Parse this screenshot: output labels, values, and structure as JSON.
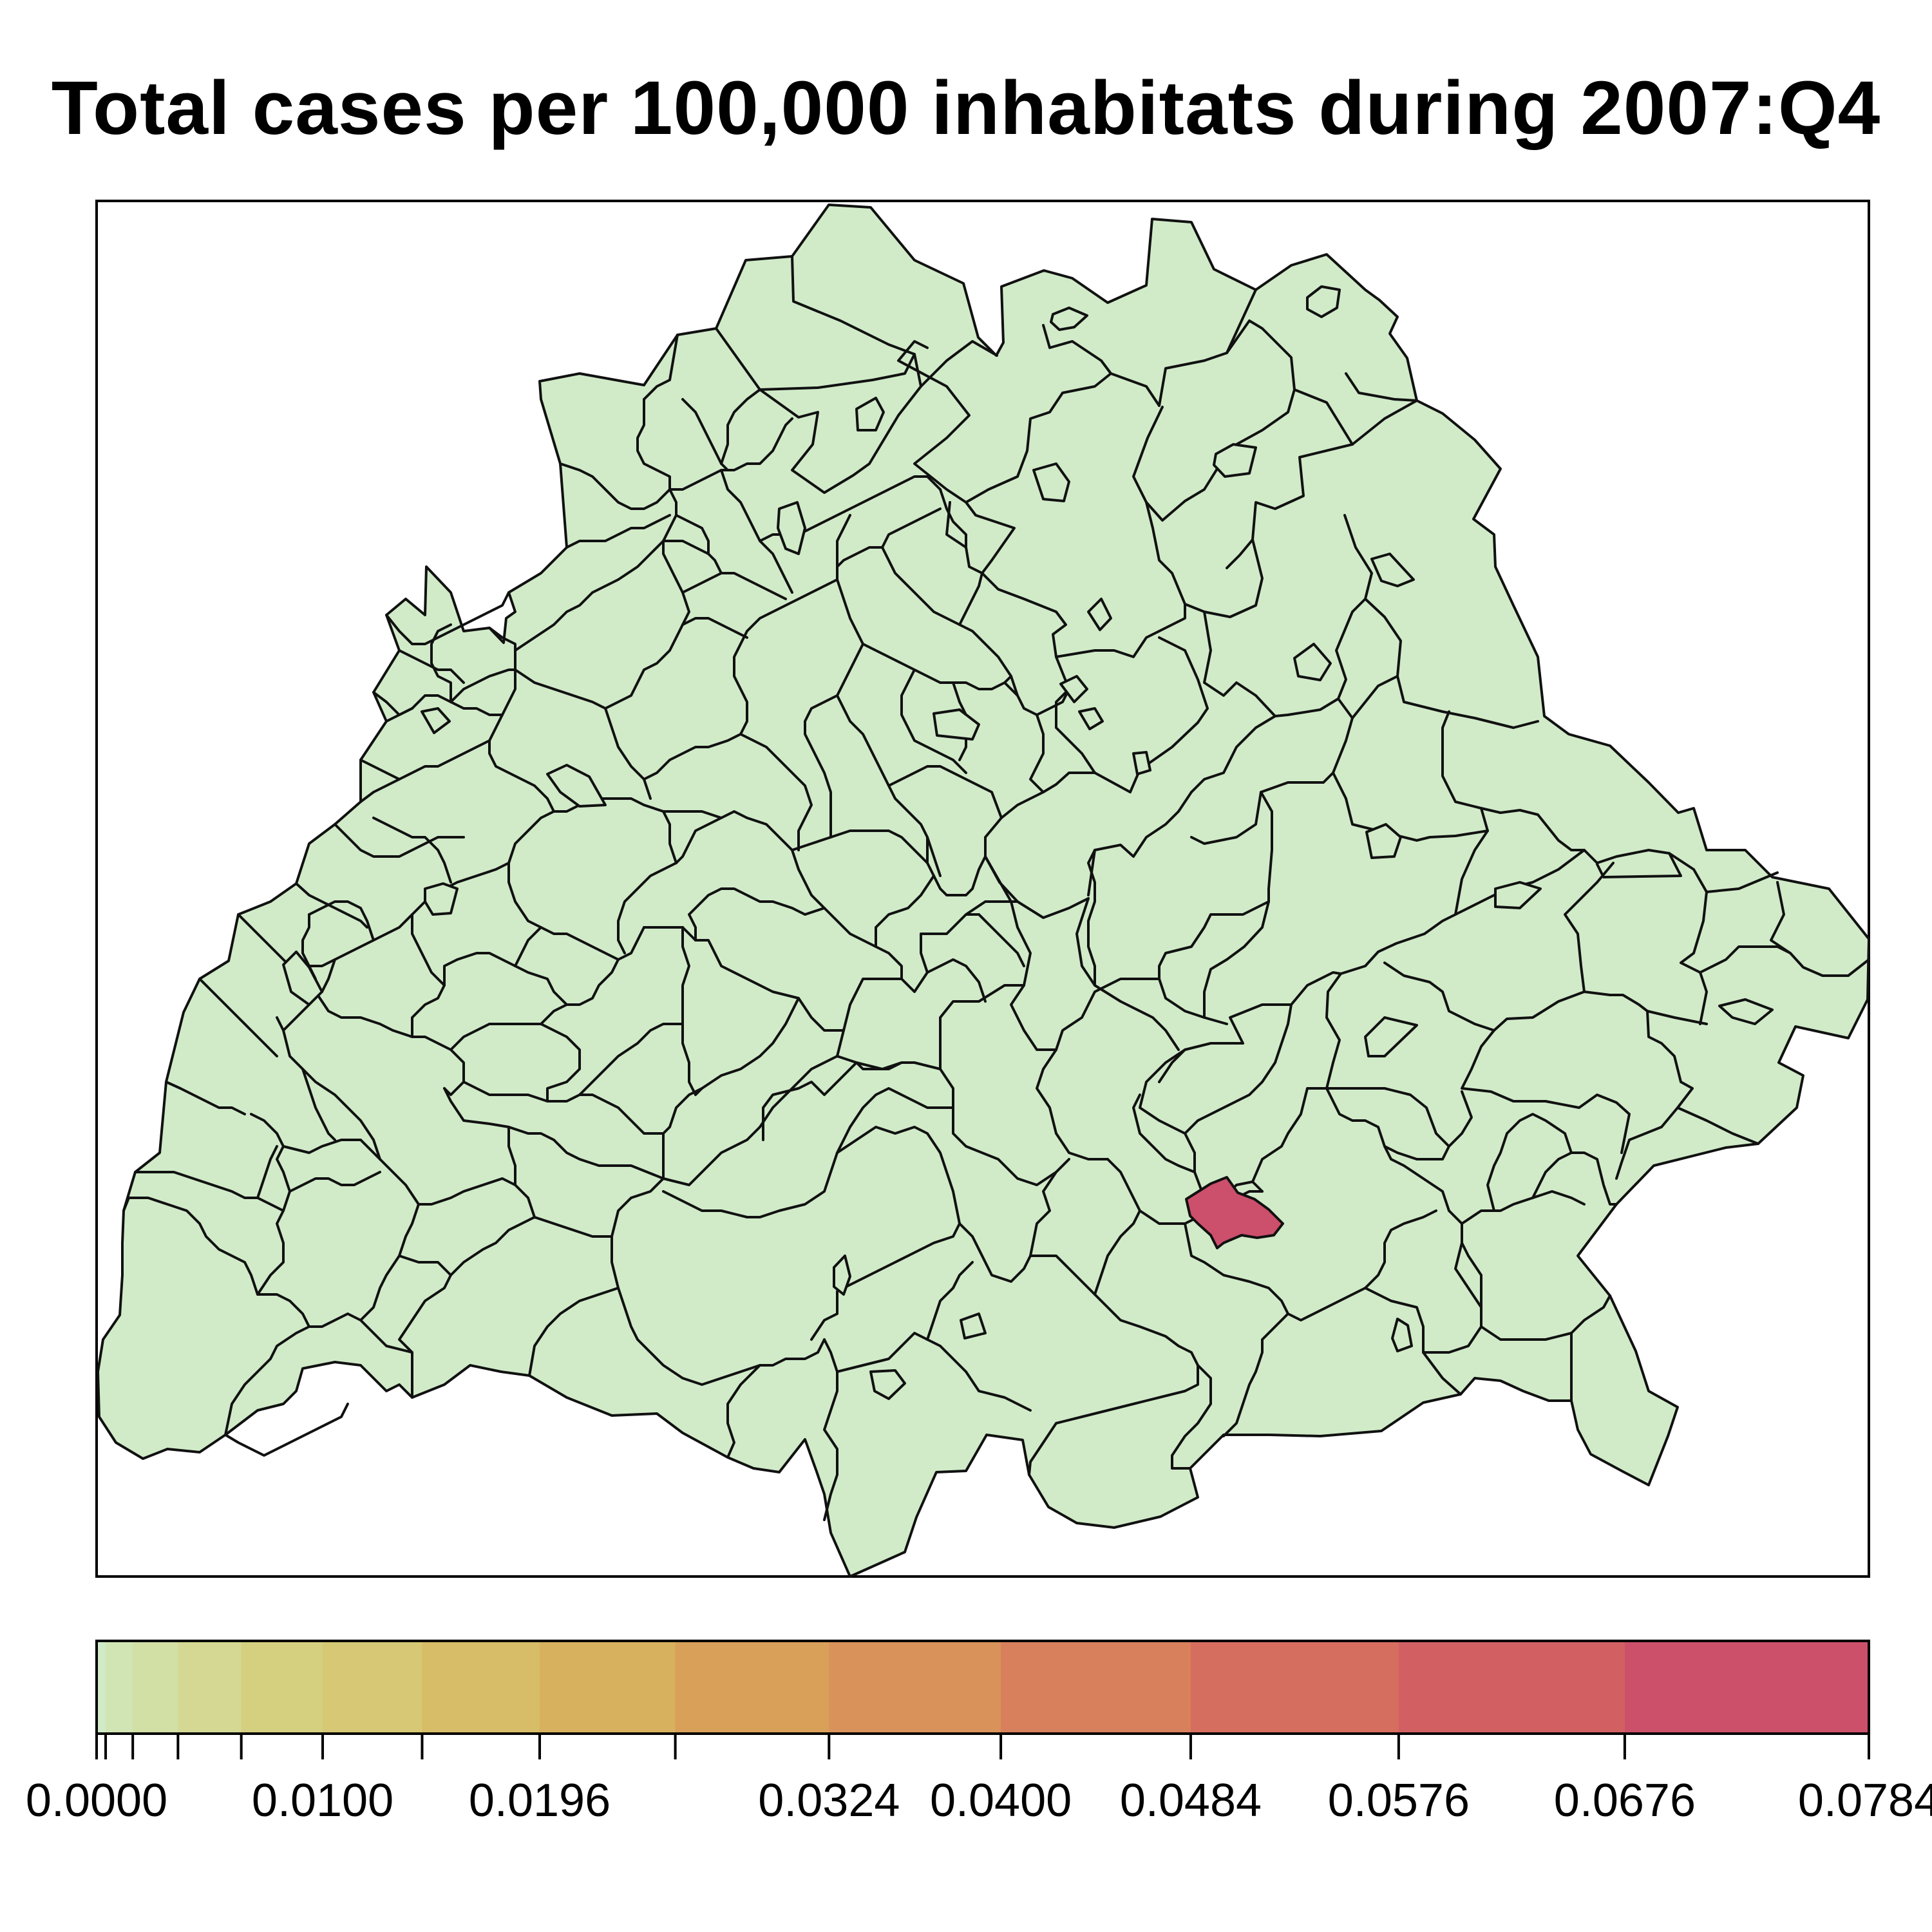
{
  "title": "Total cases per 100,000 inhabitats during 2007:Q4",
  "chart_data": {
    "type": "choropleth",
    "title": "Total cases per 100,000 inhabitats during 2007:Q4",
    "region_count_approx": 130,
    "base_fill_color": "#d1ebc9",
    "highlight_fill_color": "#cc4f6b",
    "highlighted_regions": [
      {
        "value_range": "0.0676–0.0784",
        "color": "#cc4f6b"
      }
    ],
    "all_other_regions_value": 0.0,
    "legend": {
      "position": "bottom",
      "min": 0.0,
      "max": 0.0784,
      "breaks": [
        0.0,
        0.0004,
        0.0016,
        0.0036,
        0.0064,
        0.01,
        0.0144,
        0.0196,
        0.0256,
        0.0324,
        0.04,
        0.0484,
        0.0576,
        0.0676,
        0.0784
      ],
      "labeled_ticks": [
        "0.0000",
        "0.0100",
        "0.0196",
        "0.0324",
        "0.0400",
        "0.0484",
        "0.0576",
        "0.0676",
        "0.0784"
      ],
      "labeled_values": [
        0.0,
        0.01,
        0.0196,
        0.0324,
        0.04,
        0.0484,
        0.0576,
        0.0676,
        0.0784
      ],
      "colors": [
        "#d1ebc8",
        "#d1e5b4",
        "#d2dfa5",
        "#d4d893",
        "#d5cf80",
        "#d6c874",
        "#d7bd68",
        "#d8b15e",
        "#d9a05a",
        "#d9925a",
        "#d8805b",
        "#d66e5f",
        "#d26063",
        "#cd506b"
      ]
    }
  }
}
